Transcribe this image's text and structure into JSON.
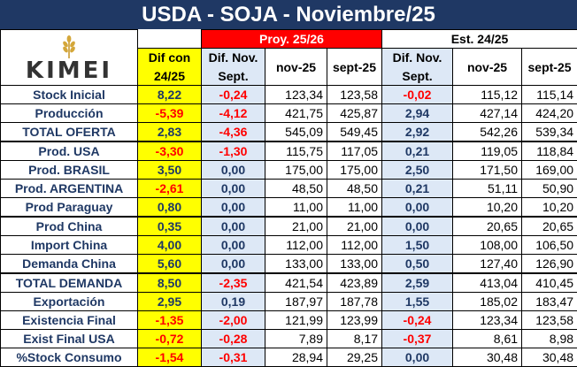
{
  "title": "USDA - SOJA - Noviembre/25",
  "logo_text": "KIMEI",
  "headers": {
    "proy": "Proy. 25/26",
    "est": "Est. 24/25",
    "dif_con": "Dif con",
    "dif_con_year": "24/25",
    "dif_nov": "Dif. Nov.",
    "sept": "Sept.",
    "nov25": "nov-25",
    "sept25": "sept-25"
  },
  "rows": [
    {
      "label": "Stock Inicial",
      "dif": "8,22",
      "dn1": "-0,24",
      "p_nov": "123,34",
      "p_sep": "123,58",
      "dn2": "-0,02",
      "e_nov": "115,12",
      "e_sep": "115,14"
    },
    {
      "label": "Producción",
      "dif": "-5,39",
      "dn1": "-4,12",
      "p_nov": "421,75",
      "p_sep": "425,87",
      "dn2": "2,94",
      "e_nov": "427,14",
      "e_sep": "424,20"
    },
    {
      "label": "TOTAL OFERTA",
      "dif": "2,83",
      "dn1": "-4,36",
      "p_nov": "545,09",
      "p_sep": "549,45",
      "dn2": "2,92",
      "e_nov": "542,26",
      "e_sep": "539,34"
    },
    {
      "label": "Prod. USA",
      "dif": "-3,30",
      "dn1": "-1,30",
      "p_nov": "115,75",
      "p_sep": "117,05",
      "dn2": "0,21",
      "e_nov": "119,05",
      "e_sep": "118,84"
    },
    {
      "label": "Prod. BRASIL",
      "dif": "3,50",
      "dn1": "0,00",
      "p_nov": "175,00",
      "p_sep": "175,00",
      "dn2": "2,50",
      "e_nov": "171,50",
      "e_sep": "169,00"
    },
    {
      "label": "Prod. ARGENTINA",
      "dif": "-2,61",
      "dn1": "0,00",
      "p_nov": "48,50",
      "p_sep": "48,50",
      "dn2": "0,21",
      "e_nov": "51,11",
      "e_sep": "50,90"
    },
    {
      "label": "Prod Paraguay",
      "dif": "0,80",
      "dn1": "0,00",
      "p_nov": "11,00",
      "p_sep": "11,00",
      "dn2": "0,00",
      "e_nov": "10,20",
      "e_sep": "10,20"
    },
    {
      "label": "Prod China",
      "dif": "0,35",
      "dn1": "0,00",
      "p_nov": "21,00",
      "p_sep": "21,00",
      "dn2": "0,00",
      "e_nov": "20,65",
      "e_sep": "20,65"
    },
    {
      "label": "Import China",
      "dif": "4,00",
      "dn1": "0,00",
      "p_nov": "112,00",
      "p_sep": "112,00",
      "dn2": "1,50",
      "e_nov": "108,00",
      "e_sep": "106,50"
    },
    {
      "label": "Demanda China",
      "dif": "5,60",
      "dn1": "0,00",
      "p_nov": "133,00",
      "p_sep": "133,00",
      "dn2": "0,50",
      "e_nov": "127,40",
      "e_sep": "126,90"
    },
    {
      "label": "TOTAL DEMANDA",
      "dif": "8,50",
      "dn1": "-2,35",
      "p_nov": "421,54",
      "p_sep": "423,89",
      "dn2": "2,59",
      "e_nov": "413,04",
      "e_sep": "410,45"
    },
    {
      "label": "Exportación",
      "dif": "2,95",
      "dn1": "0,19",
      "p_nov": "187,97",
      "p_sep": "187,78",
      "dn2": "1,55",
      "e_nov": "185,02",
      "e_sep": "183,47"
    },
    {
      "label": "Existencia Final",
      "dif": "-1,35",
      "dn1": "-2,00",
      "p_nov": "121,99",
      "p_sep": "123,99",
      "dn2": "-0,24",
      "e_nov": "123,34",
      "e_sep": "123,58"
    },
    {
      "label": "Exist Final USA",
      "dif": "-0,72",
      "dn1": "-0,28",
      "p_nov": "7,89",
      "p_sep": "8,17",
      "dn2": "-0,37",
      "e_nov": "8,61",
      "e_sep": "8,98"
    },
    {
      "label": "%Stock Consumo",
      "dif": "-1,54",
      "dn1": "-0,31",
      "p_nov": "28,94",
      "p_sep": "29,25",
      "dn2": "0,00",
      "e_nov": "30,48",
      "e_sep": "30,48"
    }
  ]
}
